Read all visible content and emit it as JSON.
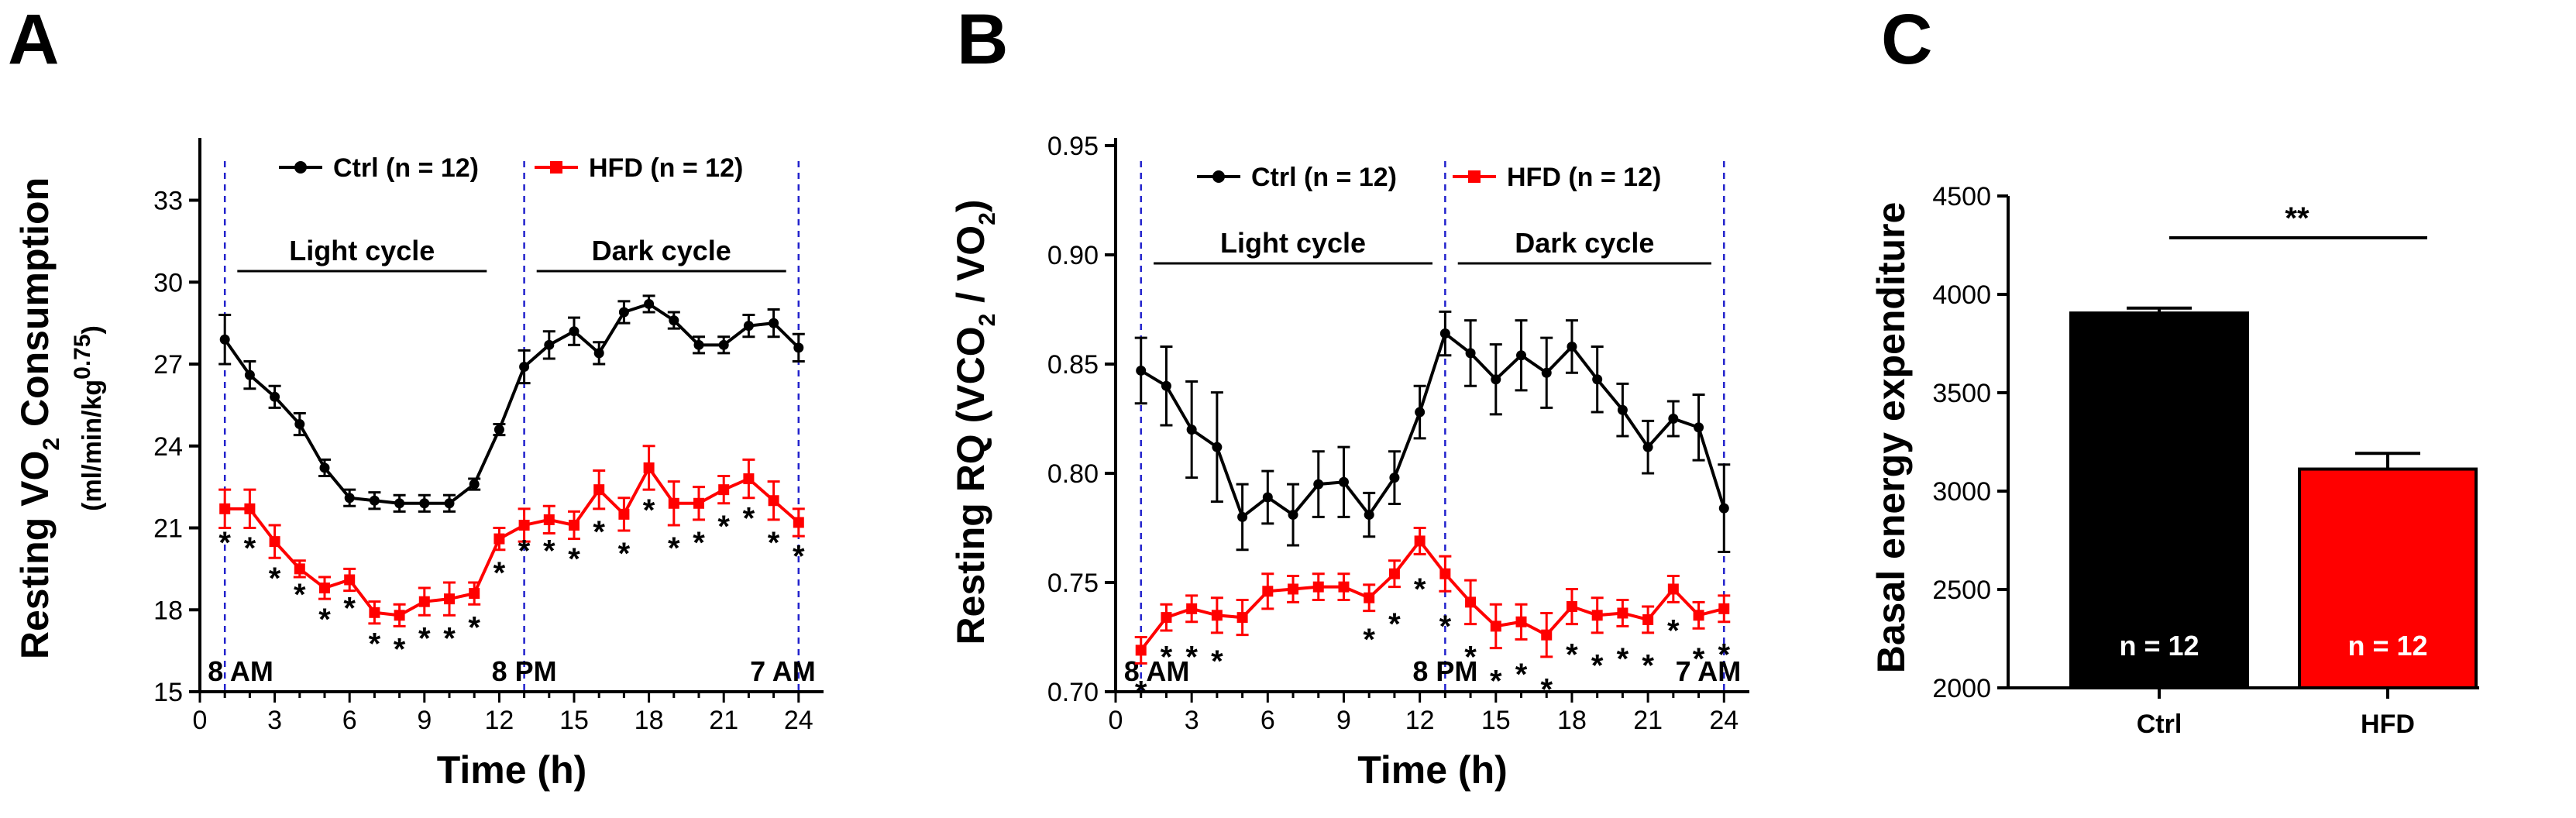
{
  "panels": {
    "A": {
      "letter": "A"
    },
    "B": {
      "letter": "B"
    },
    "C": {
      "letter": "C"
    }
  },
  "colors": {
    "ctrl": "#000000",
    "hfd": "#ff0000",
    "vline": "#2222cc"
  },
  "chart_data": [
    {
      "id": "A",
      "type": "line",
      "title": "",
      "xlabel": "Time (h)",
      "ylabel_main": "Resting VO",
      "ylabel_sub": "2",
      "ylabel_tail": " Consumption",
      "ylabel2_main": "(ml/min/kg",
      "ylabel2_sup": "0.75",
      "ylabel2_tail": ")",
      "xlim": [
        0,
        25
      ],
      "ylim": [
        15,
        35
      ],
      "xticks": [
        0,
        3,
        6,
        9,
        12,
        15,
        18,
        21,
        24
      ],
      "yticks": [
        15,
        18,
        21,
        24,
        27,
        30,
        33
      ],
      "legend": {
        "position": "top",
        "ctrl": "Ctrl  (n = 12)",
        "hfd": "HFD  (n = 12)"
      },
      "cycles": {
        "light": {
          "label": "Light cycle",
          "from": 1.5,
          "to": 11.5
        },
        "dark": {
          "label": "Dark cycle",
          "from": 13.5,
          "to": 23.5
        }
      },
      "time_markers": [
        {
          "x": 1,
          "label": "8 AM"
        },
        {
          "x": 13,
          "label": "8 PM"
        },
        {
          "x": 24,
          "label": "7 AM"
        }
      ],
      "x": [
        1,
        2,
        3,
        4,
        5,
        6,
        7,
        8,
        9,
        10,
        11,
        12,
        13,
        14,
        15,
        16,
        17,
        18,
        19,
        20,
        21,
        22,
        23,
        24
      ],
      "series": [
        {
          "name": "Ctrl",
          "color": "#000000",
          "values": [
            27.9,
            26.6,
            25.8,
            24.8,
            23.2,
            22.1,
            22.0,
            21.9,
            21.9,
            21.9,
            22.6,
            24.6,
            26.9,
            27.7,
            28.2,
            27.4,
            28.9,
            29.2,
            28.6,
            27.7,
            27.7,
            28.4,
            28.5,
            27.6
          ],
          "errors": [
            0.9,
            0.5,
            0.4,
            0.4,
            0.3,
            0.3,
            0.3,
            0.3,
            0.3,
            0.3,
            0.2,
            0.2,
            0.6,
            0.5,
            0.5,
            0.4,
            0.4,
            0.3,
            0.3,
            0.3,
            0.3,
            0.4,
            0.5,
            0.5
          ]
        },
        {
          "name": "HFD",
          "color": "#ff0000",
          "values": [
            21.7,
            21.7,
            20.5,
            19.5,
            18.8,
            19.1,
            17.9,
            17.8,
            18.3,
            18.4,
            18.6,
            20.6,
            21.1,
            21.3,
            21.1,
            22.4,
            21.5,
            23.2,
            21.9,
            21.9,
            22.4,
            22.8,
            22.0,
            21.2
          ],
          "errors": [
            0.7,
            0.7,
            0.6,
            0.3,
            0.4,
            0.4,
            0.4,
            0.4,
            0.5,
            0.6,
            0.4,
            0.4,
            0.6,
            0.5,
            0.5,
            0.7,
            0.6,
            0.8,
            0.8,
            0.6,
            0.5,
            0.7,
            0.7,
            0.5
          ]
        }
      ],
      "significance": {
        "symbol": "*",
        "x": [
          1,
          2,
          3,
          4,
          5,
          6,
          7,
          8,
          9,
          10,
          11,
          12,
          13,
          14,
          15,
          16,
          17,
          18,
          19,
          20,
          21,
          22,
          23,
          24
        ],
        "y": [
          20.7,
          20.5,
          19.4,
          18.8,
          17.9,
          18.3,
          17.0,
          16.8,
          17.2,
          17.2,
          17.6,
          19.6,
          20.4,
          20.4,
          20.1,
          21.1,
          20.3,
          21.9,
          20.5,
          20.7,
          21.3,
          21.6,
          20.7,
          20.2
        ]
      }
    },
    {
      "id": "B",
      "type": "line",
      "title": "",
      "xlabel": "Time (h)",
      "ylabel_main": "Resting RQ (VCO",
      "ylabel_sub": "2",
      "ylabel_mid": " / VO",
      "ylabel_sub2": "2",
      "ylabel_tail": ")",
      "xlim": [
        0,
        25
      ],
      "ylim": [
        0.7,
        0.95
      ],
      "xticks": [
        0,
        3,
        6,
        9,
        12,
        15,
        18,
        21,
        24
      ],
      "yticks": [
        "0.70",
        "0.75",
        "0.80",
        "0.85",
        "0.90",
        "0.95"
      ],
      "legend": {
        "position": "top",
        "ctrl": "Ctrl  (n = 12)",
        "hfd": "HFD  (n = 12)"
      },
      "cycles": {
        "light": {
          "label": "Light cycle",
          "from": 1.5,
          "to": 12.5
        },
        "dark": {
          "label": "Dark cycle",
          "from": 13.5,
          "to": 23.5
        }
      },
      "time_markers": [
        {
          "x": 1,
          "label": "8 AM"
        },
        {
          "x": 13,
          "label": "8 PM"
        },
        {
          "x": 24,
          "label": "7 AM"
        }
      ],
      "x": [
        1,
        2,
        3,
        4,
        5,
        6,
        7,
        8,
        9,
        10,
        11,
        12,
        13,
        14,
        15,
        16,
        17,
        18,
        19,
        20,
        21,
        22,
        23,
        24
      ],
      "series": [
        {
          "name": "Ctrl",
          "color": "#000000",
          "values": [
            0.847,
            0.84,
            0.82,
            0.812,
            0.78,
            0.789,
            0.781,
            0.795,
            0.796,
            0.781,
            0.798,
            0.828,
            0.864,
            0.855,
            0.843,
            0.854,
            0.846,
            0.858,
            0.843,
            0.829,
            0.812,
            0.825,
            0.821,
            0.784
          ],
          "errors": [
            0.015,
            0.018,
            0.022,
            0.025,
            0.015,
            0.012,
            0.014,
            0.015,
            0.016,
            0.01,
            0.012,
            0.012,
            0.01,
            0.015,
            0.016,
            0.016,
            0.016,
            0.012,
            0.015,
            0.012,
            0.012,
            0.008,
            0.015,
            0.02
          ]
        },
        {
          "name": "HFD",
          "color": "#ff0000",
          "values": [
            0.719,
            0.734,
            0.738,
            0.735,
            0.734,
            0.746,
            0.747,
            0.748,
            0.748,
            0.743,
            0.754,
            0.769,
            0.754,
            0.741,
            0.73,
            0.732,
            0.726,
            0.739,
            0.735,
            0.736,
            0.733,
            0.747,
            0.735,
            0.738
          ],
          "errors": [
            0.006,
            0.006,
            0.006,
            0.008,
            0.008,
            0.008,
            0.006,
            0.006,
            0.006,
            0.006,
            0.006,
            0.006,
            0.008,
            0.01,
            0.01,
            0.008,
            0.01,
            0.008,
            0.008,
            0.006,
            0.006,
            0.006,
            0.006,
            0.006
          ]
        }
      ],
      "significance": {
        "symbol": "*",
        "x": [
          1,
          2,
          3,
          4,
          11,
          12,
          13,
          14,
          15,
          16,
          17,
          18,
          19,
          20,
          21,
          22,
          23,
          24
        ],
        "y": [
          0.703,
          0.719,
          0.719,
          0.717,
          0.734,
          0.75,
          0.733,
          0.719,
          0.708,
          0.711,
          0.704,
          0.72,
          0.715,
          0.718,
          0.715,
          0.731,
          0.718,
          0.72
        ]
      },
      "significance_extra": {
        "symbol": "*",
        "x": [
          10
        ],
        "y": [
          0.727
        ]
      }
    },
    {
      "id": "C",
      "type": "bar",
      "title": "",
      "xlabel": "",
      "ylabel": "Basal energy expenditure",
      "ylim": [
        2000,
        4500
      ],
      "yticks": [
        2000,
        2500,
        3000,
        3500,
        4000,
        4500
      ],
      "categories": [
        "Ctrl",
        "HFD"
      ],
      "values": [
        3905,
        3112
      ],
      "errors": [
        25,
        80
      ],
      "colors": [
        "#000000",
        "#ff0000"
      ],
      "bar_labels": [
        "n = 12",
        "n = 12"
      ],
      "significance": "**"
    }
  ]
}
